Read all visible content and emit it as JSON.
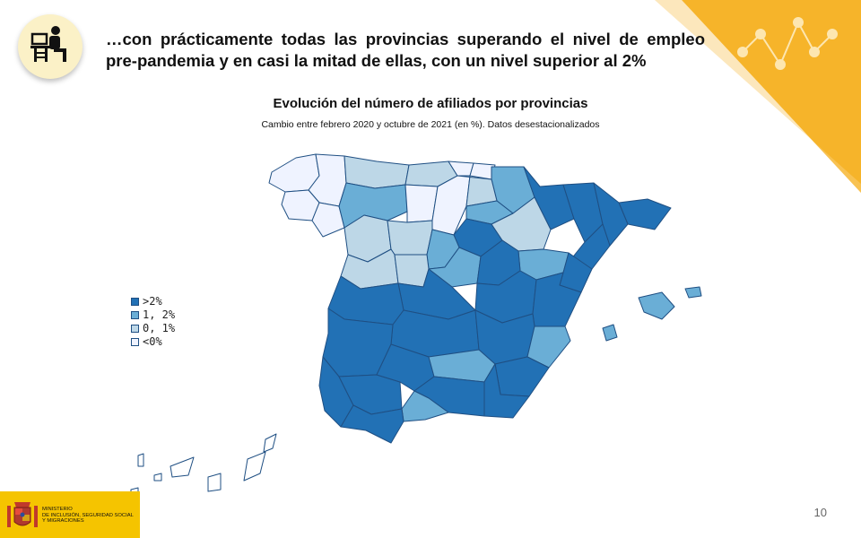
{
  "slide": {
    "headline": "…con prácticamente todas las provincias superando el nivel de empleo pre-pandemia y en casi la mitad de ellas, con un nivel superior al 2%",
    "page_number": "10"
  },
  "map": {
    "title": "Evolución del número de afiliados por provincias",
    "subtitle": "Cambio entre febrero 2020 y octubre de 2021 (en %). Datos desestacionalizados",
    "legend": [
      {
        "label": ">2%",
        "color": "#2271b5"
      },
      {
        "label": "1, 2%",
        "color": "#6aaed6"
      },
      {
        "label": "0, 1%",
        "color": "#bdd7e7"
      },
      {
        "label": "<0%",
        "color": "#eff3ff"
      }
    ],
    "border_color": "#1f4f83"
  },
  "logo": {
    "lines": [
      "Ministerio",
      "de Inclusión, Seguridad Social",
      "y Migraciones"
    ]
  },
  "colors": {
    "accent": "#f6b42a",
    "logo_bg": "#f5c400"
  },
  "icons": {
    "person": "person-at-desk-icon",
    "network": "network-dots-icon",
    "coat_of_arms": "coat-of-arms-icon"
  }
}
